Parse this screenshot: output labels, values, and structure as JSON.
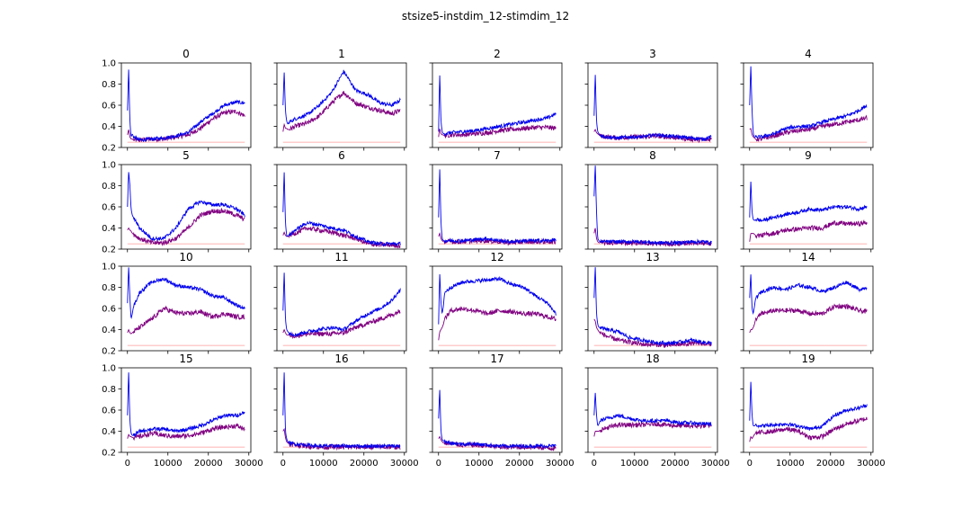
{
  "figure": {
    "suptitle": "stsize5-instdim_12-stimdim_12"
  },
  "chart_data": {
    "type": "line",
    "rows": 4,
    "cols": 5,
    "sharex": true,
    "sharey": true,
    "xlim": [
      -1500,
      30500
    ],
    "ylim": [
      0.2,
      1.0
    ],
    "xticks": [
      0,
      10000,
      20000,
      30000
    ],
    "xtick_labels": [
      "0",
      "10000",
      "20000",
      "30000"
    ],
    "yticks": [
      0.2,
      0.4,
      0.6,
      0.8,
      1.0
    ],
    "ytick_labels": [
      "0.2",
      "0.4",
      "0.6",
      "0.8",
      "1.0"
    ],
    "x": [
      0,
      300,
      600,
      900,
      1200,
      1500,
      3000,
      6000,
      9000,
      12000,
      15000,
      18000,
      21000,
      24000,
      27000,
      29000
    ],
    "baseline_level": 0.25,
    "series_colors": {
      "blue": "#0000ee",
      "purple": "#800080",
      "baseline": "#ff9999"
    },
    "panels": [
      {
        "title": "0",
        "blue": [
          0.55,
          0.95,
          0.45,
          0.3,
          0.33,
          0.3,
          0.27,
          0.28,
          0.29,
          0.31,
          0.34,
          0.44,
          0.52,
          0.6,
          0.63,
          0.62
        ],
        "purple": [
          0.32,
          0.37,
          0.3,
          0.28,
          0.28,
          0.27,
          0.27,
          0.28,
          0.28,
          0.3,
          0.32,
          0.38,
          0.47,
          0.53,
          0.54,
          0.5
        ]
      },
      {
        "title": "1",
        "blue": [
          0.6,
          0.92,
          0.55,
          0.45,
          0.42,
          0.44,
          0.47,
          0.51,
          0.6,
          0.72,
          0.92,
          0.74,
          0.7,
          0.62,
          0.6,
          0.65
        ],
        "purple": [
          0.35,
          0.42,
          0.38,
          0.38,
          0.37,
          0.37,
          0.4,
          0.43,
          0.5,
          0.62,
          0.72,
          0.62,
          0.58,
          0.55,
          0.52,
          0.55
        ]
      },
      {
        "title": "2",
        "blue": [
          0.35,
          0.9,
          0.45,
          0.35,
          0.33,
          0.33,
          0.34,
          0.35,
          0.36,
          0.38,
          0.4,
          0.42,
          0.44,
          0.46,
          0.48,
          0.52
        ],
        "purple": [
          0.3,
          0.38,
          0.33,
          0.32,
          0.32,
          0.31,
          0.32,
          0.32,
          0.33,
          0.34,
          0.36,
          0.37,
          0.38,
          0.39,
          0.39,
          0.38
        ]
      },
      {
        "title": "3",
        "blue": [
          0.5,
          0.9,
          0.45,
          0.35,
          0.33,
          0.32,
          0.3,
          0.29,
          0.3,
          0.3,
          0.32,
          0.31,
          0.3,
          0.29,
          0.28,
          0.3
        ],
        "purple": [
          0.35,
          0.37,
          0.34,
          0.33,
          0.32,
          0.31,
          0.3,
          0.29,
          0.3,
          0.3,
          0.31,
          0.3,
          0.29,
          0.28,
          0.27,
          0.28
        ]
      },
      {
        "title": "4",
        "blue": [
          0.6,
          0.98,
          0.55,
          0.33,
          0.3,
          0.3,
          0.3,
          0.33,
          0.38,
          0.4,
          0.4,
          0.44,
          0.47,
          0.5,
          0.55,
          0.6
        ],
        "purple": [
          0.37,
          0.38,
          0.32,
          0.3,
          0.29,
          0.28,
          0.28,
          0.31,
          0.34,
          0.36,
          0.37,
          0.4,
          0.42,
          0.44,
          0.46,
          0.48
        ]
      },
      {
        "title": "5",
        "blue": [
          0.6,
          0.94,
          0.8,
          0.58,
          0.52,
          0.5,
          0.4,
          0.3,
          0.3,
          0.4,
          0.58,
          0.65,
          0.62,
          0.62,
          0.58,
          0.52
        ],
        "purple": [
          0.38,
          0.4,
          0.38,
          0.37,
          0.35,
          0.34,
          0.3,
          0.26,
          0.26,
          0.3,
          0.4,
          0.52,
          0.56,
          0.56,
          0.52,
          0.48
        ]
      },
      {
        "title": "6",
        "blue": [
          0.55,
          0.94,
          0.45,
          0.33,
          0.32,
          0.33,
          0.38,
          0.45,
          0.43,
          0.4,
          0.38,
          0.32,
          0.27,
          0.25,
          0.25,
          0.25
        ],
        "purple": [
          0.33,
          0.36,
          0.33,
          0.32,
          0.32,
          0.33,
          0.35,
          0.4,
          0.38,
          0.36,
          0.33,
          0.3,
          0.25,
          0.24,
          0.24,
          0.23
        ]
      },
      {
        "title": "7",
        "blue": [
          0.5,
          0.97,
          0.45,
          0.3,
          0.28,
          0.28,
          0.28,
          0.28,
          0.29,
          0.3,
          0.28,
          0.27,
          0.28,
          0.28,
          0.28,
          0.29
        ],
        "purple": [
          0.32,
          0.35,
          0.3,
          0.28,
          0.27,
          0.27,
          0.27,
          0.27,
          0.28,
          0.28,
          0.27,
          0.26,
          0.27,
          0.27,
          0.27,
          0.27
        ]
      },
      {
        "title": "8",
        "blue": [
          0.7,
          1.0,
          0.55,
          0.3,
          0.28,
          0.27,
          0.27,
          0.27,
          0.27,
          0.27,
          0.26,
          0.26,
          0.26,
          0.27,
          0.27,
          0.26
        ],
        "purple": [
          0.35,
          0.4,
          0.3,
          0.27,
          0.26,
          0.26,
          0.26,
          0.26,
          0.26,
          0.26,
          0.25,
          0.25,
          0.25,
          0.26,
          0.26,
          0.25
        ]
      },
      {
        "title": "9",
        "blue": [
          0.5,
          0.85,
          0.55,
          0.48,
          0.47,
          0.48,
          0.47,
          0.5,
          0.53,
          0.55,
          0.58,
          0.57,
          0.6,
          0.6,
          0.58,
          0.6
        ],
        "purple": [
          0.27,
          0.35,
          0.35,
          0.35,
          0.34,
          0.33,
          0.33,
          0.35,
          0.38,
          0.39,
          0.4,
          0.4,
          0.45,
          0.44,
          0.44,
          0.45
        ]
      },
      {
        "title": "10",
        "blue": [
          0.65,
          1.0,
          0.7,
          0.5,
          0.55,
          0.62,
          0.75,
          0.85,
          0.88,
          0.82,
          0.8,
          0.78,
          0.72,
          0.7,
          0.63,
          0.6
        ],
        "purple": [
          0.37,
          0.4,
          0.37,
          0.36,
          0.37,
          0.38,
          0.42,
          0.5,
          0.6,
          0.56,
          0.55,
          0.57,
          0.52,
          0.55,
          0.52,
          0.52
        ]
      },
      {
        "title": "11",
        "blue": [
          0.58,
          0.95,
          0.5,
          0.4,
          0.38,
          0.37,
          0.35,
          0.38,
          0.4,
          0.42,
          0.4,
          0.48,
          0.55,
          0.6,
          0.68,
          0.78
        ],
        "purple": [
          0.37,
          0.4,
          0.37,
          0.35,
          0.35,
          0.35,
          0.34,
          0.36,
          0.36,
          0.36,
          0.37,
          0.42,
          0.46,
          0.5,
          0.54,
          0.58
        ]
      },
      {
        "title": "12",
        "blue": [
          0.45,
          0.94,
          0.65,
          0.55,
          0.62,
          0.75,
          0.8,
          0.85,
          0.86,
          0.87,
          0.88,
          0.83,
          0.8,
          0.72,
          0.65,
          0.55
        ],
        "purple": [
          0.3,
          0.38,
          0.4,
          0.42,
          0.45,
          0.5,
          0.58,
          0.6,
          0.58,
          0.55,
          0.58,
          0.57,
          0.55,
          0.55,
          0.52,
          0.5
        ]
      },
      {
        "title": "13",
        "blue": [
          0.7,
          1.0,
          0.55,
          0.45,
          0.42,
          0.42,
          0.4,
          0.38,
          0.32,
          0.3,
          0.28,
          0.27,
          0.28,
          0.3,
          0.28,
          0.27
        ],
        "purple": [
          0.5,
          0.48,
          0.42,
          0.4,
          0.38,
          0.37,
          0.34,
          0.3,
          0.28,
          0.26,
          0.26,
          0.25,
          0.26,
          0.27,
          0.27,
          0.26
        ]
      },
      {
        "title": "14",
        "blue": [
          0.7,
          0.93,
          0.6,
          0.55,
          0.62,
          0.7,
          0.76,
          0.8,
          0.78,
          0.82,
          0.8,
          0.76,
          0.8,
          0.85,
          0.78,
          0.8
        ],
        "purple": [
          0.37,
          0.4,
          0.4,
          0.42,
          0.45,
          0.5,
          0.55,
          0.58,
          0.58,
          0.58,
          0.55,
          0.55,
          0.62,
          0.62,
          0.58,
          0.57
        ]
      },
      {
        "title": "15",
        "blue": [
          0.55,
          0.97,
          0.5,
          0.38,
          0.36,
          0.36,
          0.4,
          0.42,
          0.42,
          0.4,
          0.42,
          0.45,
          0.5,
          0.55,
          0.55,
          0.58
        ],
        "purple": [
          0.33,
          0.37,
          0.35,
          0.35,
          0.34,
          0.34,
          0.35,
          0.38,
          0.36,
          0.35,
          0.36,
          0.38,
          0.42,
          0.44,
          0.45,
          0.42
        ]
      },
      {
        "title": "16",
        "blue": [
          0.55,
          0.97,
          0.4,
          0.33,
          0.3,
          0.29,
          0.28,
          0.27,
          0.26,
          0.26,
          0.26,
          0.26,
          0.26,
          0.26,
          0.26,
          0.26
        ],
        "purple": [
          0.4,
          0.42,
          0.34,
          0.3,
          0.29,
          0.28,
          0.27,
          0.26,
          0.25,
          0.25,
          0.25,
          0.25,
          0.25,
          0.25,
          0.25,
          0.25
        ]
      },
      {
        "title": "17",
        "blue": [
          0.52,
          0.8,
          0.4,
          0.32,
          0.31,
          0.3,
          0.29,
          0.28,
          0.28,
          0.27,
          0.26,
          0.26,
          0.26,
          0.26,
          0.26,
          0.26
        ],
        "purple": [
          0.33,
          0.35,
          0.32,
          0.3,
          0.29,
          0.29,
          0.28,
          0.27,
          0.27,
          0.26,
          0.25,
          0.25,
          0.25,
          0.25,
          0.24,
          0.24
        ]
      },
      {
        "title": "18",
        "blue": [
          0.55,
          0.77,
          0.55,
          0.45,
          0.47,
          0.5,
          0.52,
          0.55,
          0.52,
          0.5,
          0.5,
          0.5,
          0.48,
          0.48,
          0.47,
          0.47
        ],
        "purple": [
          0.35,
          0.4,
          0.4,
          0.4,
          0.4,
          0.41,
          0.43,
          0.46,
          0.46,
          0.46,
          0.47,
          0.46,
          0.45,
          0.45,
          0.45,
          0.46
        ]
      },
      {
        "title": "19",
        "blue": [
          0.5,
          0.88,
          0.55,
          0.45,
          0.45,
          0.46,
          0.45,
          0.46,
          0.47,
          0.45,
          0.42,
          0.45,
          0.55,
          0.6,
          0.62,
          0.65
        ],
        "purple": [
          0.3,
          0.35,
          0.33,
          0.35,
          0.37,
          0.38,
          0.39,
          0.4,
          0.42,
          0.4,
          0.34,
          0.35,
          0.42,
          0.47,
          0.5,
          0.52
        ]
      }
    ]
  }
}
